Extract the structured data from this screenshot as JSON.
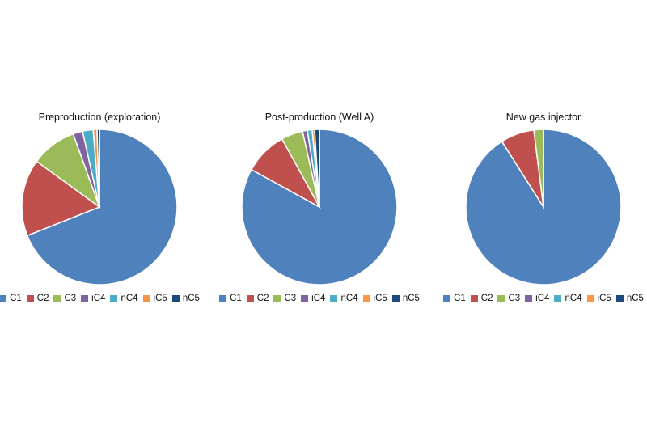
{
  "colors": {
    "C1": "#4F81BD",
    "C2": "#C0504D",
    "C3": "#9BBB59",
    "iC4": "#8064A2",
    "nC4": "#4BACC6",
    "iC5": "#F79646",
    "nC5": "#1F497D"
  },
  "chart_data": [
    {
      "type": "pie",
      "title": "Preproduction (exploration)",
      "labels": [
        "C1",
        "C2",
        "C3",
        "iC4",
        "nC4",
        "iC5",
        "nC5"
      ],
      "values": [
        69,
        16,
        9.5,
        2,
        2.2,
        0.8,
        0.5
      ],
      "legend": "bottom"
    },
    {
      "type": "pie",
      "title": "Post-production (Well A)",
      "labels": [
        "C1",
        "C2",
        "C3",
        "iC4",
        "nC4",
        "iC5",
        "nC5"
      ],
      "values": [
        83,
        9,
        4.5,
        1,
        1,
        0.5,
        1
      ],
      "legend": "bottom"
    },
    {
      "type": "pie",
      "title": "New gas injector",
      "labels": [
        "C1",
        "C2",
        "C3",
        "iC4",
        "nC4",
        "iC5",
        "nC5"
      ],
      "values": [
        91,
        7,
        2,
        0,
        0,
        0,
        0
      ],
      "legend": "bottom"
    }
  ]
}
